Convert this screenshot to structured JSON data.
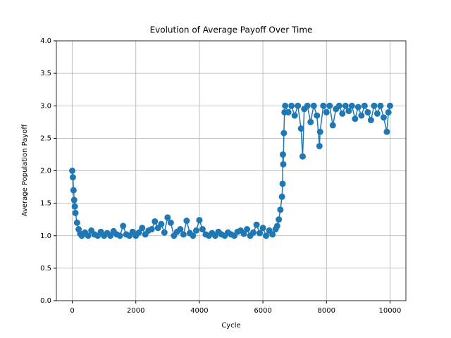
{
  "chart_data": {
    "type": "line",
    "title": "Evolution of Average Payoff Over Time",
    "x_label": "Cycle",
    "y_label": "Average Population Payoff",
    "x": [
      0,
      20,
      40,
      60,
      80,
      100,
      150,
      200,
      250,
      300,
      400,
      500,
      600,
      700,
      800,
      900,
      1000,
      1100,
      1200,
      1300,
      1400,
      1500,
      1600,
      1700,
      1800,
      1900,
      2000,
      2100,
      2200,
      2300,
      2400,
      2500,
      2600,
      2700,
      2800,
      2900,
      3000,
      3100,
      3200,
      3300,
      3400,
      3500,
      3600,
      3700,
      3800,
      3900,
      4000,
      4100,
      4200,
      4300,
      4400,
      4500,
      4600,
      4700,
      4800,
      4900,
      5000,
      5100,
      5200,
      5300,
      5400,
      5500,
      5600,
      5700,
      5800,
      5900,
      6000,
      6100,
      6200,
      6300,
      6400,
      6450,
      6500,
      6550,
      6600,
      6620,
      6630,
      6640,
      6660,
      6680,
      6700,
      6800,
      6900,
      7000,
      7100,
      7200,
      7250,
      7300,
      7400,
      7500,
      7600,
      7700,
      7780,
      7800,
      7900,
      8000,
      8100,
      8200,
      8300,
      8400,
      8500,
      8600,
      8700,
      8800,
      8900,
      9000,
      9100,
      9200,
      9300,
      9400,
      9500,
      9600,
      9700,
      9800,
      9900,
      9950,
      10000
    ],
    "values": [
      2.0,
      1.9,
      1.7,
      1.55,
      1.45,
      1.35,
      1.2,
      1.1,
      1.03,
      1.0,
      1.05,
      1.0,
      1.08,
      1.02,
      1.0,
      1.06,
      1.0,
      1.04,
      1.0,
      1.07,
      1.02,
      1.0,
      1.15,
      1.02,
      1.0,
      1.06,
      1.0,
      1.05,
      1.12,
      1.02,
      1.08,
      1.1,
      1.22,
      1.12,
      1.18,
      1.05,
      1.28,
      1.2,
      1.0,
      1.06,
      1.1,
      1.02,
      1.23,
      1.04,
      1.0,
      1.08,
      1.24,
      1.1,
      1.02,
      1.0,
      1.04,
      1.0,
      1.06,
      1.02,
      1.0,
      1.05,
      1.02,
      1.0,
      1.06,
      1.08,
      1.03,
      1.1,
      1.0,
      1.05,
      1.17,
      1.04,
      1.12,
      1.0,
      1.08,
      1.02,
      1.1,
      1.15,
      1.25,
      1.4,
      1.6,
      1.8,
      2.25,
      2.1,
      2.58,
      2.9,
      3.0,
      2.9,
      3.0,
      2.85,
      3.0,
      2.65,
      2.22,
      2.95,
      3.0,
      2.75,
      3.0,
      2.85,
      2.38,
      2.6,
      3.0,
      2.9,
      3.0,
      2.7,
      2.95,
      3.0,
      2.88,
      3.0,
      2.92,
      3.0,
      2.8,
      2.98,
      2.85,
      3.0,
      2.9,
      2.78,
      3.0,
      2.88,
      3.0,
      2.82,
      2.6,
      2.9,
      3.0
    ],
    "color": "#1f77b4",
    "xlim": [
      -500,
      10500
    ],
    "xticks": [
      0,
      2000,
      4000,
      6000,
      8000,
      10000
    ],
    "ylim": [
      0,
      4
    ],
    "yticks": [
      {
        "value": 0,
        "label": "0.0"
      },
      {
        "value": 0.5,
        "label": "0.5"
      },
      {
        "value": 1,
        "label": "1.0"
      },
      {
        "value": 1.5,
        "label": "1.5"
      },
      {
        "value": 2,
        "label": "2.0"
      },
      {
        "value": 2.5,
        "label": "2.5"
      },
      {
        "value": 3,
        "label": "3.0"
      },
      {
        "value": 3.5,
        "label": "3.5"
      },
      {
        "value": 4,
        "label": "4.0"
      }
    ],
    "grid": true
  }
}
